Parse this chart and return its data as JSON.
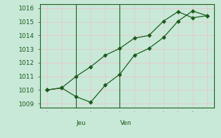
{
  "line1_x": [
    0,
    1,
    2,
    3,
    4,
    5,
    6,
    7,
    8,
    9,
    10,
    11
  ],
  "line1_y": [
    1010.0,
    1010.15,
    1009.5,
    1009.1,
    1010.35,
    1011.15,
    1012.55,
    1013.05,
    1013.85,
    1015.05,
    1015.8,
    1015.45
  ],
  "line2_x": [
    0,
    1,
    2,
    3,
    4,
    5,
    6,
    7,
    8,
    9,
    10,
    11
  ],
  "line2_y": [
    1010.0,
    1010.15,
    1011.0,
    1011.7,
    1012.55,
    1013.05,
    1013.8,
    1014.0,
    1015.05,
    1015.75,
    1015.3,
    1015.45
  ],
  "yticks": [
    1009,
    1010,
    1011,
    1012,
    1013,
    1014,
    1015,
    1016
  ],
  "ylim": [
    1008.7,
    1016.3
  ],
  "xlim": [
    -0.5,
    11.5
  ],
  "vline_x": [
    2,
    5
  ],
  "jeu_x": 2,
  "ven_x": 5,
  "line_color": "#1a5c1a",
  "bg_color": "#c8e8d8",
  "grid_major_color": "#e8c8c8",
  "grid_minor_color": "#e8c8c8",
  "axis_color": "#1a5c1a",
  "tick_color": "#1a5c1a",
  "tick_fontsize": 6.5,
  "xlabel_fontsize": 8,
  "label_fontsize": 6.5
}
